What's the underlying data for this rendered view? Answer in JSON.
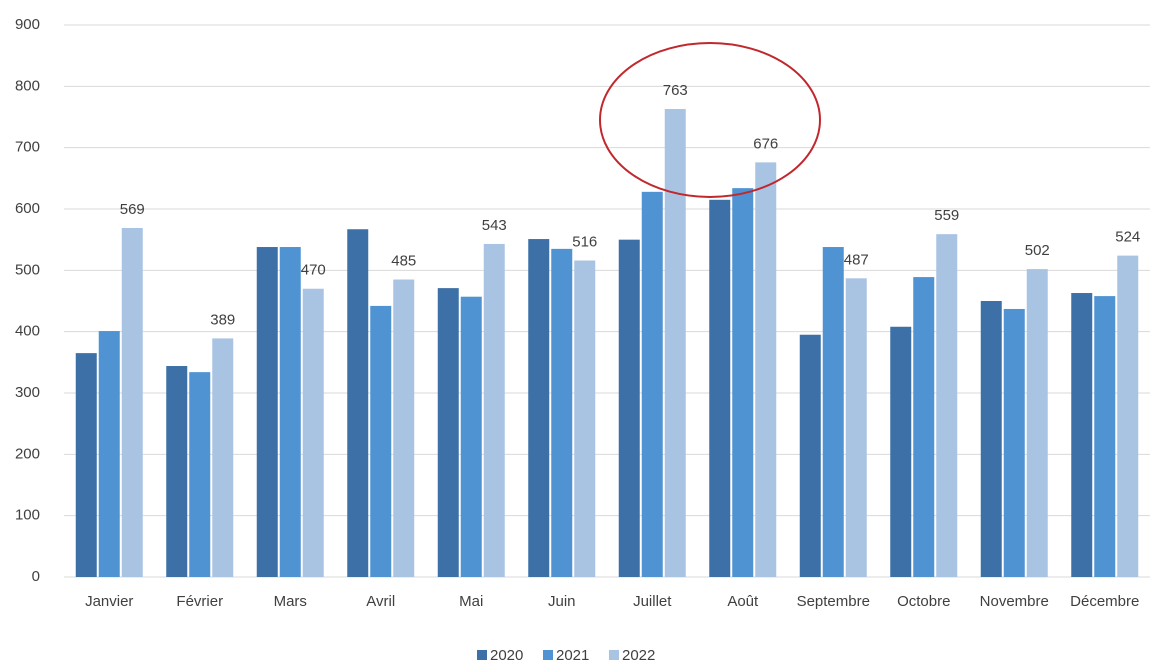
{
  "chart_data": {
    "type": "bar",
    "categories": [
      "Janvier",
      "Février",
      "Mars",
      "Avril",
      "Mai",
      "Juin",
      "Juillet",
      "Août",
      "Septembre",
      "Octobre",
      "Novembre",
      "Décembre"
    ],
    "series": [
      {
        "name": "2020",
        "color": "#3d70a6",
        "values": [
          365,
          344,
          538,
          567,
          471,
          551,
          550,
          615,
          395,
          408,
          450,
          463
        ]
      },
      {
        "name": "2021",
        "color": "#4f93d3",
        "values": [
          401,
          334,
          538,
          442,
          457,
          535,
          628,
          634,
          538,
          489,
          437,
          458
        ]
      },
      {
        "name": "2022",
        "color": "#a9c3e3",
        "values": [
          569,
          389,
          470,
          485,
          543,
          516,
          763,
          676,
          487,
          559,
          502,
          524
        ],
        "data_labels": true
      }
    ],
    "ylim": [
      0,
      900
    ],
    "yticks": [
      0,
      100,
      200,
      300,
      400,
      500,
      600,
      700,
      800,
      900
    ],
    "grid": true,
    "legend": "bottom"
  }
}
